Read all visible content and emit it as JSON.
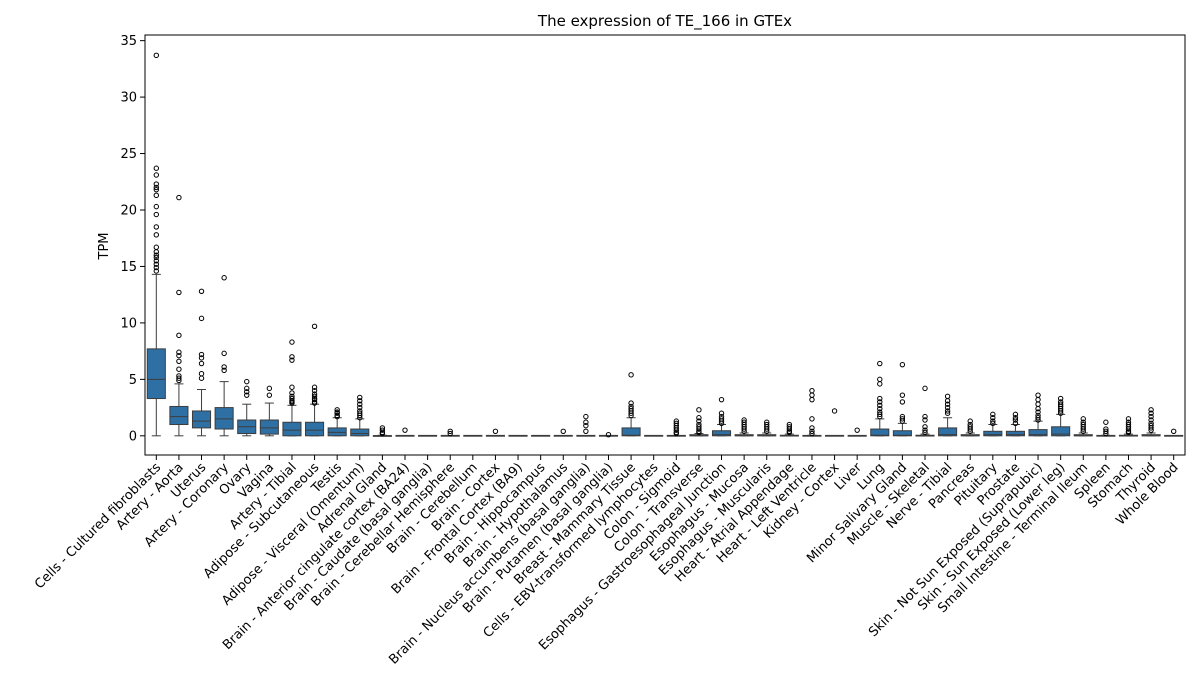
{
  "chart_data": {
    "type": "box",
    "title": "The expression of TE_166 in GTEx",
    "xlabel": "",
    "ylabel": "TPM",
    "ylim": [
      -1.7,
      35.5
    ],
    "yticks": [
      0,
      5,
      10,
      15,
      20,
      25,
      30,
      35
    ],
    "grid": false,
    "box_color": "#2e6fa4",
    "categories": [
      "Cells - Cultured fibroblasts",
      "Artery - Aorta",
      "Uterus",
      "Artery - Coronary",
      "Ovary",
      "Vagina",
      "Artery - Tibial",
      "Adipose - Subcutaneous",
      "Testis",
      "Adipose - Visceral (Omentum)",
      "Adrenal Gland",
      "Brain - Anterior cingulate cortex (BA24)",
      "Brain - Caudate (basal ganglia)",
      "Brain - Cerebellar Hemisphere",
      "Brain - Cerebellum",
      "Brain - Cortex",
      "Brain - Frontal Cortex (BA9)",
      "Brain - Hippocampus",
      "Brain - Hypothalamus",
      "Brain - Nucleus accumbens (basal ganglia)",
      "Brain - Putamen (basal ganglia)",
      "Breast - Mammary Tissue",
      "Cells - EBV-transformed lymphocytes",
      "Colon - Sigmoid",
      "Colon - Transverse",
      "Esophagus - Gastroesophageal Junction",
      "Esophagus - Mucosa",
      "Esophagus - Muscularis",
      "Heart - Atrial Appendage",
      "Heart - Left Ventricle",
      "Kidney - Cortex",
      "Liver",
      "Lung",
      "Minor Salivary Gland",
      "Muscle - Skeletal",
      "Nerve - Tibial",
      "Pancreas",
      "Pituitary",
      "Prostate",
      "Skin - Not Sun Exposed (Suprapubic)",
      "Skin - Sun Exposed (Lower leg)",
      "Small Intestine - Terminal Ileum",
      "Spleen",
      "Stomach",
      "Thyroid",
      "Whole Blood"
    ],
    "boxes": [
      {
        "q1": 3.3,
        "median": 5.0,
        "q3": 7.7,
        "whislo": 0.0,
        "whishi": 14.3,
        "fliers": [
          33.7,
          23.7,
          23.1,
          22.3,
          22.0,
          21.8,
          21.3,
          20.3,
          19.6,
          18.5,
          17.8,
          16.7,
          16.3,
          16.0,
          15.8,
          15.5,
          15.2,
          14.9,
          14.6
        ]
      },
      {
        "q1": 1.0,
        "median": 1.7,
        "q3": 2.6,
        "whislo": 0.0,
        "whishi": 4.6,
        "fliers": [
          21.1,
          12.7,
          8.9,
          7.4,
          7.1,
          6.6,
          5.9,
          5.3,
          5.1,
          4.9
        ]
      },
      {
        "q1": 0.7,
        "median": 1.3,
        "q3": 2.2,
        "whislo": 0.0,
        "whishi": 4.1,
        "fliers": [
          12.8,
          10.4,
          7.2,
          6.9,
          6.4,
          5.5,
          5.1
        ]
      },
      {
        "q1": 0.6,
        "median": 1.5,
        "q3": 2.5,
        "whislo": 0.0,
        "whishi": 4.8,
        "fliers": [
          14.0,
          7.3,
          6.1,
          5.8
        ]
      },
      {
        "q1": 0.2,
        "median": 0.8,
        "q3": 1.4,
        "whislo": 0.0,
        "whishi": 2.8,
        "fliers": [
          4.8,
          4.2,
          3.9,
          3.6
        ]
      },
      {
        "q1": 0.15,
        "median": 0.7,
        "q3": 1.4,
        "whislo": 0.0,
        "whishi": 2.9,
        "fliers": [
          4.2,
          3.6
        ]
      },
      {
        "q1": 0.0,
        "median": 0.5,
        "q3": 1.2,
        "whislo": 0.0,
        "whishi": 2.7,
        "fliers": [
          8.3,
          7.0,
          6.7,
          4.3,
          3.8,
          3.5,
          3.3,
          3.1,
          3.0,
          2.9
        ]
      },
      {
        "q1": 0.0,
        "median": 0.5,
        "q3": 1.2,
        "whislo": 0.0,
        "whishi": 2.8,
        "fliers": [
          9.7,
          4.3,
          4.0,
          3.7,
          3.5,
          3.3,
          3.2,
          3.0,
          2.9
        ]
      },
      {
        "q1": 0.0,
        "median": 0.3,
        "q3": 0.7,
        "whislo": 0.0,
        "whishi": 1.6,
        "fliers": [
          2.3,
          2.1,
          2.0,
          1.8,
          1.7
        ]
      },
      {
        "q1": 0.0,
        "median": 0.2,
        "q3": 0.6,
        "whislo": 0.0,
        "whishi": 1.5,
        "fliers": [
          3.4,
          3.1,
          2.8,
          2.5,
          2.2,
          2.0,
          1.8,
          1.6
        ]
      },
      {
        "q1": 0.0,
        "median": 0.0,
        "q3": 0.02,
        "whislo": 0.0,
        "whishi": 0.05,
        "fliers": [
          0.7,
          0.5,
          0.3,
          0.2
        ]
      },
      {
        "q1": 0.0,
        "median": 0.0,
        "q3": 0.0,
        "whislo": 0.0,
        "whishi": 0.0,
        "fliers": [
          0.5
        ]
      },
      {
        "q1": 0.0,
        "median": 0.0,
        "q3": 0.0,
        "whislo": 0.0,
        "whishi": 0.0,
        "fliers": []
      },
      {
        "q1": 0.0,
        "median": 0.0,
        "q3": 0.0,
        "whislo": 0.0,
        "whishi": 0.0,
        "fliers": [
          0.4,
          0.2
        ]
      },
      {
        "q1": 0.0,
        "median": 0.0,
        "q3": 0.0,
        "whislo": 0.0,
        "whishi": 0.0,
        "fliers": []
      },
      {
        "q1": 0.0,
        "median": 0.0,
        "q3": 0.0,
        "whislo": 0.0,
        "whishi": 0.0,
        "fliers": [
          0.4
        ]
      },
      {
        "q1": 0.0,
        "median": 0.0,
        "q3": 0.0,
        "whislo": 0.0,
        "whishi": 0.0,
        "fliers": []
      },
      {
        "q1": 0.0,
        "median": 0.0,
        "q3": 0.0,
        "whislo": 0.0,
        "whishi": 0.0,
        "fliers": []
      },
      {
        "q1": 0.0,
        "median": 0.0,
        "q3": 0.0,
        "whislo": 0.0,
        "whishi": 0.0,
        "fliers": [
          0.4
        ]
      },
      {
        "q1": 0.0,
        "median": 0.0,
        "q3": 0.0,
        "whislo": 0.0,
        "whishi": 0.0,
        "fliers": [
          1.7,
          1.2,
          0.9,
          0.4
        ]
      },
      {
        "q1": 0.0,
        "median": 0.0,
        "q3": 0.0,
        "whislo": 0.0,
        "whishi": 0.0,
        "fliers": [
          0.1
        ]
      },
      {
        "q1": 0.0,
        "median": 0.05,
        "q3": 0.7,
        "whislo": 0.0,
        "whishi": 1.6,
        "fliers": [
          5.4,
          2.9,
          2.6,
          2.4,
          2.2,
          2.0,
          1.8
        ]
      },
      {
        "q1": 0.0,
        "median": 0.0,
        "q3": 0.0,
        "whislo": 0.0,
        "whishi": 0.0,
        "fliers": []
      },
      {
        "q1": 0.0,
        "median": 0.0,
        "q3": 0.0,
        "whislo": 0.0,
        "whishi": 0.0,
        "fliers": [
          1.3,
          1.1,
          0.9,
          0.7,
          0.5,
          0.3,
          0.2
        ]
      },
      {
        "q1": 0.0,
        "median": 0.0,
        "q3": 0.1,
        "whislo": 0.0,
        "whishi": 0.2,
        "fliers": [
          2.3,
          1.6,
          1.3,
          1.0,
          0.8,
          0.6,
          0.4,
          0.3
        ]
      },
      {
        "q1": 0.0,
        "median": 0.1,
        "q3": 0.45,
        "whislo": 0.0,
        "whishi": 1.0,
        "fliers": [
          3.2,
          2.0,
          1.7,
          1.5,
          1.3,
          1.1
        ]
      },
      {
        "q1": 0.0,
        "median": 0.0,
        "q3": 0.1,
        "whislo": 0.0,
        "whishi": 0.25,
        "fliers": [
          1.4,
          1.2,
          1.0,
          0.8,
          0.6,
          0.4
        ]
      },
      {
        "q1": 0.0,
        "median": 0.0,
        "q3": 0.1,
        "whislo": 0.0,
        "whishi": 0.25,
        "fliers": [
          1.2,
          1.0,
          0.8,
          0.6,
          0.4
        ]
      },
      {
        "q1": 0.0,
        "median": 0.0,
        "q3": 0.05,
        "whislo": 0.0,
        "whishi": 0.15,
        "fliers": [
          1.0,
          0.8,
          0.6,
          0.4,
          0.3
        ]
      },
      {
        "q1": 0.0,
        "median": 0.0,
        "q3": 0.0,
        "whislo": 0.0,
        "whishi": 0.05,
        "fliers": [
          4.0,
          3.6,
          3.2,
          1.5,
          0.7,
          0.4,
          0.2
        ]
      },
      {
        "q1": 0.0,
        "median": 0.0,
        "q3": 0.0,
        "whislo": 0.0,
        "whishi": 0.0,
        "fliers": [
          2.2
        ]
      },
      {
        "q1": 0.0,
        "median": 0.0,
        "q3": 0.0,
        "whislo": 0.0,
        "whishi": 0.0,
        "fliers": [
          0.5
        ]
      },
      {
        "q1": 0.0,
        "median": 0.05,
        "q3": 0.6,
        "whislo": 0.0,
        "whishi": 1.5,
        "fliers": [
          6.4,
          5.0,
          4.6,
          3.3,
          3.0,
          2.7,
          2.4,
          2.1,
          1.9,
          1.7
        ]
      },
      {
        "q1": 0.0,
        "median": 0.05,
        "q3": 0.45,
        "whislo": 0.0,
        "whishi": 1.1,
        "fliers": [
          6.3,
          3.6,
          3.0,
          1.7,
          1.5,
          1.3
        ]
      },
      {
        "q1": 0.0,
        "median": 0.0,
        "q3": 0.05,
        "whislo": 0.0,
        "whishi": 0.15,
        "fliers": [
          4.2,
          1.7,
          1.4,
          0.8,
          0.5,
          0.3
        ]
      },
      {
        "q1": 0.0,
        "median": 0.1,
        "q3": 0.7,
        "whislo": 0.0,
        "whishi": 1.6,
        "fliers": [
          3.5,
          3.1,
          2.8,
          2.5,
          2.2,
          2.0
        ]
      },
      {
        "q1": 0.0,
        "median": 0.0,
        "q3": 0.1,
        "whislo": 0.0,
        "whishi": 0.25,
        "fliers": [
          1.3,
          1.0,
          0.8,
          0.6,
          0.4
        ]
      },
      {
        "q1": 0.0,
        "median": 0.1,
        "q3": 0.4,
        "whislo": 0.0,
        "whishi": 1.0,
        "fliers": [
          1.9,
          1.6,
          1.3,
          1.1
        ]
      },
      {
        "q1": 0.0,
        "median": 0.1,
        "q3": 0.4,
        "whislo": 0.0,
        "whishi": 1.0,
        "fliers": [
          1.9,
          1.6,
          1.4,
          1.1
        ]
      },
      {
        "q1": 0.0,
        "median": 0.1,
        "q3": 0.55,
        "whislo": 0.0,
        "whishi": 1.3,
        "fliers": [
          3.6,
          3.2,
          2.8,
          2.4,
          2.1,
          1.8,
          1.6,
          1.4
        ]
      },
      {
        "q1": 0.0,
        "median": 0.15,
        "q3": 0.8,
        "whislo": 0.0,
        "whishi": 1.9,
        "fliers": [
          3.3,
          3.0,
          2.8,
          2.6,
          2.4,
          2.2,
          2.0
        ]
      },
      {
        "q1": 0.0,
        "median": 0.0,
        "q3": 0.1,
        "whislo": 0.0,
        "whishi": 0.25,
        "fliers": [
          1.5,
          1.2,
          1.0,
          0.8,
          0.6,
          0.4
        ]
      },
      {
        "q1": 0.0,
        "median": 0.0,
        "q3": 0.0,
        "whislo": 0.0,
        "whishi": 0.05,
        "fliers": [
          1.2,
          0.6,
          0.4,
          0.2
        ]
      },
      {
        "q1": 0.0,
        "median": 0.0,
        "q3": 0.05,
        "whislo": 0.0,
        "whishi": 0.15,
        "fliers": [
          1.5,
          1.2,
          1.0,
          0.8,
          0.6,
          0.4,
          0.3
        ]
      },
      {
        "q1": 0.0,
        "median": 0.0,
        "q3": 0.1,
        "whislo": 0.0,
        "whishi": 0.25,
        "fliers": [
          2.3,
          2.0,
          1.7,
          1.4,
          1.1,
          0.9,
          0.7,
          0.5
        ]
      },
      {
        "q1": 0.0,
        "median": 0.0,
        "q3": 0.0,
        "whislo": 0.0,
        "whishi": 0.0,
        "fliers": [
          0.4
        ]
      }
    ]
  }
}
